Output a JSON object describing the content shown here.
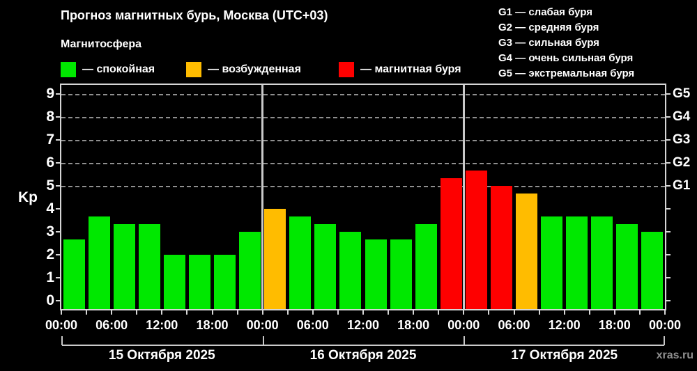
{
  "header": {
    "title": "Прогноз магнитных бурь, Москва (UTC+03)",
    "subtitle": "Магнитосфера",
    "legend": [
      {
        "label": "— спокойная",
        "color": "#00e800"
      },
      {
        "label": "— возбужденная",
        "color": "#ffbc00"
      },
      {
        "label": "— магнитная буря",
        "color": "#fe0000"
      }
    ],
    "g_legend": [
      "G1 — слабая буря",
      "G2 — средняя буря",
      "G3 — сильная буря",
      "G4 — очень сильная буря",
      "G5 — экстремальная буря"
    ]
  },
  "watermark": "xras.ru",
  "chart_data": {
    "type": "bar",
    "title": "Прогноз магнитных бурь, Москва (UTC+03)",
    "ylabel": "Kp",
    "ylim": [
      -0.4,
      9.4
    ],
    "yticks": [
      0,
      1,
      2,
      3,
      4,
      5,
      6,
      7,
      8,
      9
    ],
    "grid_levels_kp": [
      5,
      6,
      7,
      8,
      9
    ],
    "grid": "dashed, only at G-storm levels Kp 5..9",
    "right_axis": {
      "labels": [
        "G1",
        "G2",
        "G3",
        "G4",
        "G5"
      ],
      "kp_levels": [
        5,
        6,
        7,
        8,
        9
      ]
    },
    "x_tick_labels": [
      "00:00",
      "06:00",
      "12:00",
      "18:00",
      "00:00",
      "06:00",
      "12:00",
      "18:00",
      "00:00",
      "06:00",
      "12:00",
      "18:00",
      "00:00"
    ],
    "interval_hours": 3,
    "days": [
      {
        "date": "15 Октября 2025",
        "kp_values": [
          2.67,
          3.67,
          3.33,
          3.33,
          2.0,
          2.0,
          2.0,
          3.0
        ]
      },
      {
        "date": "16 Октября 2025",
        "kp_values": [
          4.0,
          3.67,
          3.33,
          3.0,
          2.67,
          2.67,
          3.33,
          5.33
        ]
      },
      {
        "date": "17 Октября 2025",
        "kp_values": [
          5.67,
          5.0,
          4.67,
          3.67,
          3.67,
          3.67,
          3.33,
          3.0
        ]
      }
    ],
    "colors": {
      "quiet": "#00e800",
      "excited": "#ffbc00",
      "storm": "#fe0000"
    },
    "thresholds": {
      "excited_min_kp": 4,
      "storm_min_kp": 5
    },
    "legend_position": "top-left"
  }
}
